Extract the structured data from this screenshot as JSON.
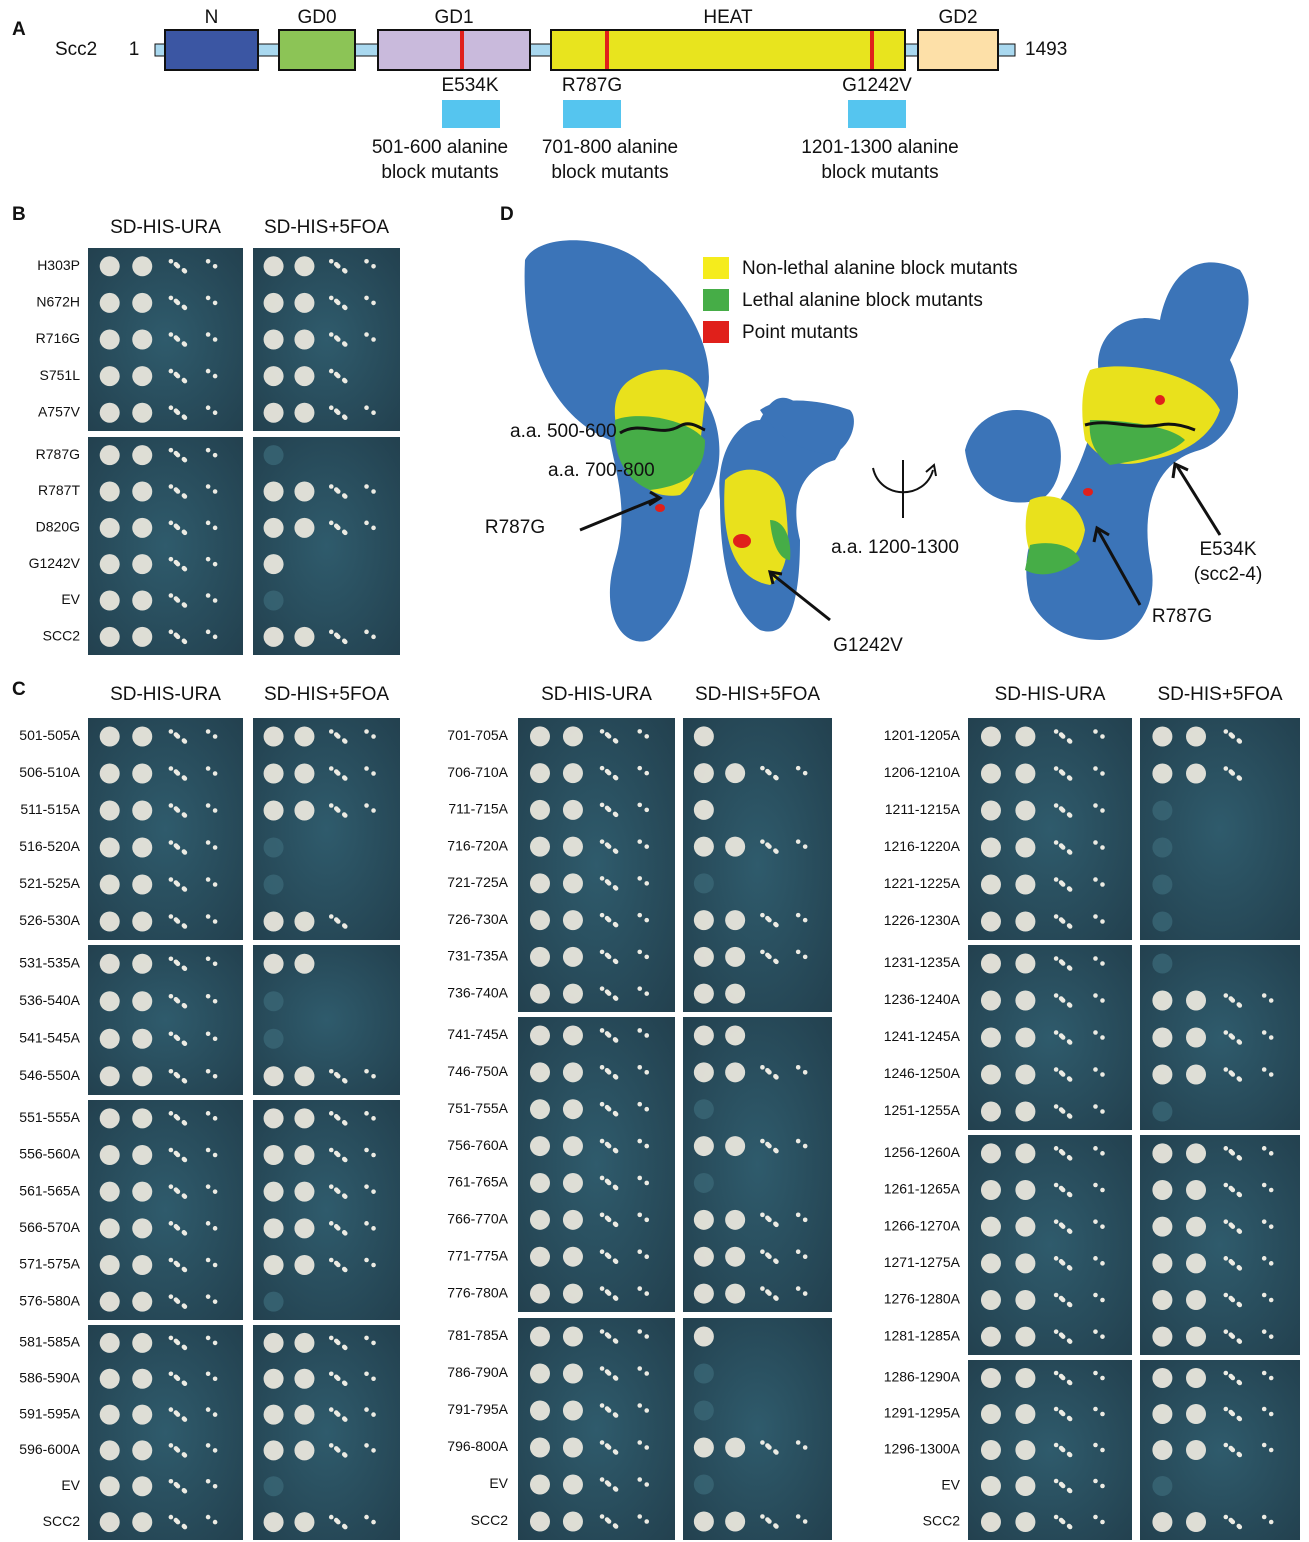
{
  "panel_a": {
    "label": "A",
    "protein": "Scc2",
    "start": "1",
    "end": "1493",
    "domains": [
      "N",
      "GD0",
      "GD1",
      "HEAT",
      "GD2"
    ],
    "mutations": [
      "E534K",
      "R787G",
      "G1242V"
    ],
    "blocks": [
      [
        "501-600 alanine",
        "block mutants"
      ],
      [
        "701-800 alanine",
        "block mutants"
      ],
      [
        "1201-1300 alanine",
        "block mutants"
      ]
    ]
  },
  "panel_b": {
    "label": "B",
    "headers": [
      "SD-HIS-URA",
      "SD-HIS+5FOA"
    ],
    "plates": [
      [
        "H303P",
        "N672H",
        "R716G",
        "S751L",
        "A757V"
      ],
      [
        "R787G",
        "R787T",
        "D820G",
        "G1242V",
        "EV",
        "SCC2"
      ]
    ]
  },
  "panel_c": {
    "label": "C",
    "groups": [
      {
        "headers": [
          "SD-HIS-URA",
          "SD-HIS+5FOA"
        ],
        "plates": [
          [
            "501-505A",
            "506-510A",
            "511-515A",
            "516-520A",
            "521-525A",
            "526-530A"
          ],
          [
            "531-535A",
            "536-540A",
            "541-545A",
            "546-550A"
          ],
          [
            "551-555A",
            "556-560A",
            "561-565A",
            "566-570A",
            "571-575A",
            "576-580A"
          ],
          [
            "581-585A",
            "586-590A",
            "591-595A",
            "596-600A",
            "EV",
            "SCC2"
          ]
        ]
      },
      {
        "headers": [
          "SD-HIS-URA",
          "SD-HIS+5FOA"
        ],
        "plates": [
          [
            "701-705A",
            "706-710A",
            "711-715A",
            "716-720A",
            "721-725A",
            "726-730A",
            "731-735A",
            "736-740A"
          ],
          [
            "741-745A",
            "746-750A",
            "751-755A",
            "756-760A",
            "761-765A",
            "766-770A",
            "771-775A",
            "776-780A"
          ],
          [
            "781-785A",
            "786-790A",
            "791-795A",
            "796-800A",
            "EV",
            "SCC2"
          ]
        ]
      },
      {
        "headers": [
          "SD-HIS-URA",
          "SD-HIS+5FOA"
        ],
        "plates": [
          [
            "1201-1205A",
            "1206-1210A",
            "1211-1215A",
            "1216-1220A",
            "1221-1225A",
            "1226-1230A"
          ],
          [
            "1231-1235A",
            "1236-1240A",
            "1241-1245A",
            "1246-1250A",
            "1251-1255A"
          ],
          [
            "1256-1260A",
            "1261-1265A",
            "1266-1270A",
            "1271-1275A",
            "1276-1280A",
            "1281-1285A"
          ],
          [
            "1286-1290A",
            "1291-1295A",
            "1296-1300A",
            "EV",
            "SCC2"
          ]
        ]
      }
    ]
  },
  "panel_d": {
    "label": "D",
    "legend": [
      "Non-lethal alanine block mutants",
      "Lethal alanine block mutants",
      "Point mutants"
    ],
    "region_1": "a.a. 500-600",
    "region_2": "a.a. 700-800",
    "region_3": "a.a. 1200-1300",
    "left_r787g": "R787G",
    "left_g1242v": "G1242V",
    "right_e534k": [
      "E534K",
      "(scc2-4)"
    ],
    "right_r787g": "R787G"
  }
}
